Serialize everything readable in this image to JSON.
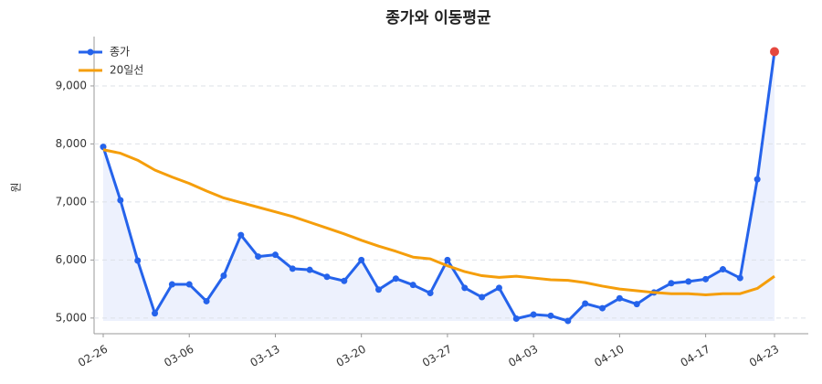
{
  "chart_data": {
    "type": "line",
    "title": "종가와 이동평균",
    "y_label": "원",
    "categories": [
      "02-26",
      null,
      null,
      null,
      null,
      "03-06",
      null,
      null,
      null,
      null,
      "03-13",
      null,
      null,
      null,
      null,
      "03-20",
      null,
      null,
      null,
      null,
      "03-27",
      null,
      null,
      null,
      null,
      "04-03",
      null,
      null,
      null,
      null,
      "04-10",
      null,
      null,
      null,
      null,
      "04-17",
      null,
      null,
      null,
      "04-23"
    ],
    "series": [
      {
        "name": "종가",
        "color": "#2563eb",
        "fill": "#e8eefc",
        "markers": true,
        "last_marker_color": "#e5483f",
        "values": [
          7950,
          7030,
          5990,
          5080,
          5580,
          5580,
          5290,
          5730,
          6430,
          6060,
          6090,
          5850,
          5830,
          5710,
          5640,
          6000,
          5490,
          5680,
          5570,
          5430,
          6000,
          5520,
          5360,
          5520,
          4990,
          5060,
          5040,
          4950,
          5250,
          5170,
          5340,
          5240,
          5440,
          5600,
          5630,
          5670,
          5840,
          5690,
          7390,
          9590
        ]
      },
      {
        "name": "20일선",
        "color": "#f59e0b",
        "markers": false,
        "values": [
          7900,
          7840,
          7720,
          7550,
          7430,
          7320,
          7190,
          7070,
          6990,
          6910,
          6830,
          6750,
          6650,
          6550,
          6450,
          6340,
          6240,
          6150,
          6050,
          6020,
          5900,
          5800,
          5730,
          5700,
          5720,
          5690,
          5660,
          5650,
          5610,
          5550,
          5500,
          5470,
          5440,
          5420,
          5420,
          5400,
          5420,
          5420,
          5510,
          5720
        ]
      }
    ],
    "ylim": [
      4730,
      9850
    ],
    "yticks": [
      {
        "value": 5000,
        "label": "5,000"
      },
      {
        "value": 6000,
        "label": "6,000"
      },
      {
        "value": 7000,
        "label": "7,000"
      },
      {
        "value": 8000,
        "label": "8,000"
      },
      {
        "value": 9000,
        "label": "9,000"
      }
    ],
    "grid": true,
    "legend": "upper-left"
  }
}
